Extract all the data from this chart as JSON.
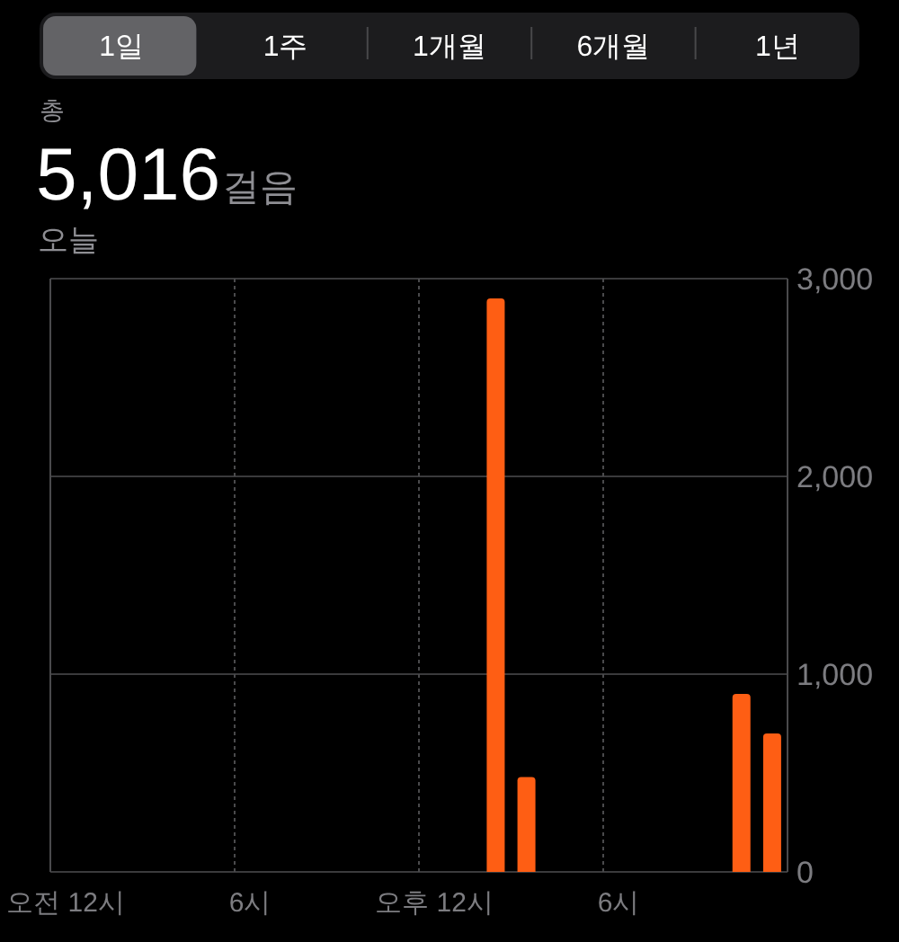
{
  "chart_data": {
    "type": "bar",
    "title": "5,016걸음",
    "subtitle": "오늘",
    "annotations": [
      "총",
      "1일",
      "1주",
      "1개월",
      "6개월",
      "1년"
    ],
    "categories": [
      "오전 12시",
      null,
      null,
      null,
      null,
      null,
      "6시",
      null,
      null,
      null,
      null,
      null,
      "오후 12시",
      null,
      null,
      null,
      null,
      null,
      "6시",
      null,
      null,
      null,
      null,
      null
    ],
    "values": [
      null,
      null,
      null,
      null,
      null,
      null,
      null,
      null,
      null,
      null,
      null,
      null,
      null,
      null,
      2900,
      480,
      null,
      null,
      null,
      null,
      null,
      null,
      900,
      700
    ],
    "color": "#fe5e14",
    "ylim": [
      0,
      3000
    ],
    "yticks": [
      0,
      {
        "value": 1000,
        "label": "1,000"
      },
      {
        "value": 2000,
        "label": "2,000"
      },
      {
        "value": 3000,
        "label": "3,000"
      }
    ],
    "grid": true
  }
}
